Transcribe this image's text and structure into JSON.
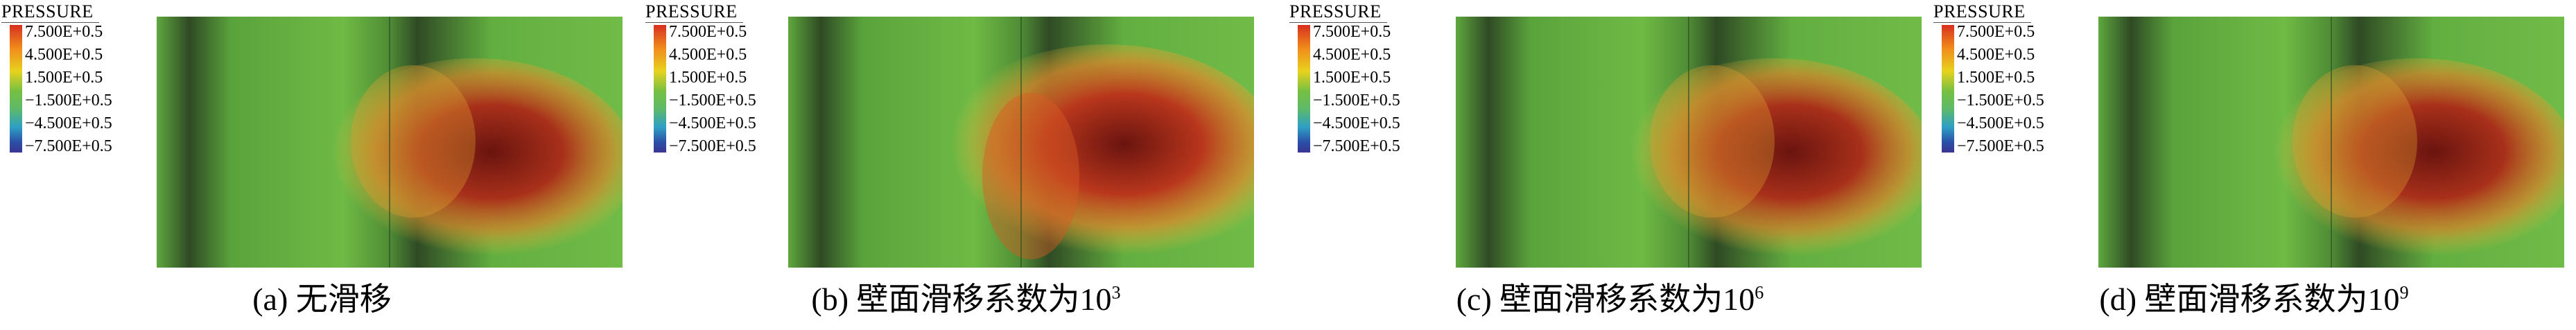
{
  "legend": {
    "title": "PRESSURE",
    "ticks": [
      "7.500E+0.5",
      "4.500E+0.5",
      "1.500E+0.5",
      "−1.500E+0.5",
      "−4.500E+0.5",
      "−7.500E+0.5"
    ]
  },
  "panels": [
    {
      "caption_main": "(a) 无滑移",
      "caption_sup": ""
    },
    {
      "caption_main": "(b) 壁面滑移系数为10",
      "caption_sup": "3"
    },
    {
      "caption_main": "(c) 壁面滑移系数为10",
      "caption_sup": "6"
    },
    {
      "caption_main": "(d) 壁面滑移系数为10",
      "caption_sup": "9"
    }
  ],
  "colors": {
    "high": "#d7301f",
    "mid": "#76c043",
    "low": "#3b3591",
    "core": "#6a140f"
  }
}
